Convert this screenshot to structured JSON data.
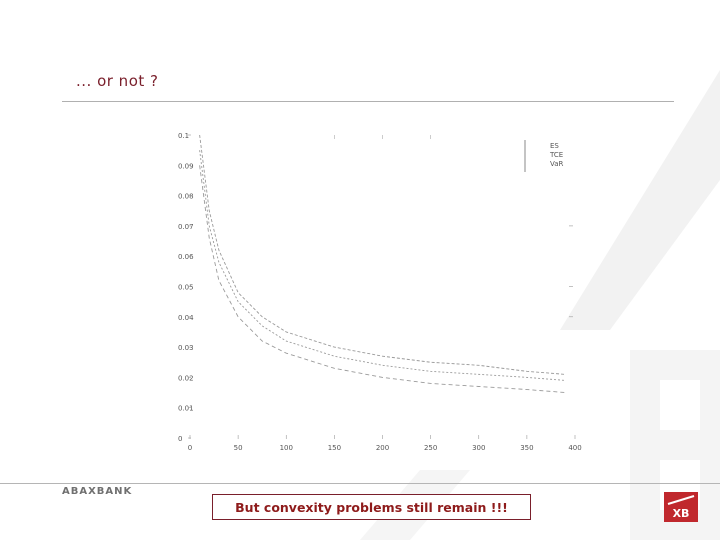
{
  "slide": {
    "title": "... or not ?",
    "brand": "ABAXBANK",
    "callout": "But convexity problems still remain !!!",
    "logo_text": "XB"
  },
  "colors": {
    "title": "#7a1f2b",
    "callout_text": "#8e1b1b",
    "logo_red": "#c0282d",
    "watermark": "#f2f2f2",
    "line": "#9a9a9a"
  },
  "chart_data": {
    "type": "line",
    "title": "",
    "xlabel": "",
    "ylabel": "",
    "xlim": [
      0,
      400
    ],
    "ylim": [
      0,
      0.1
    ],
    "x_ticks": [
      0,
      50,
      100,
      150,
      200,
      250,
      300,
      350,
      400
    ],
    "x_tick_labels": [
      "0",
      "50",
      "100",
      "150",
      "200",
      "250",
      "300",
      "350",
      "400"
    ],
    "y_ticks": [
      0,
      0.01,
      0.02,
      0.03,
      0.04,
      0.05,
      0.06,
      0.07,
      0.08,
      0.09,
      0.1
    ],
    "y_tick_labels": [
      "0",
      "0.01",
      "0.02",
      "0.03",
      "0.04",
      "0.05",
      "0.06",
      "0.07",
      "0.08",
      "0.09",
      "0.1"
    ],
    "legend_position": "top-right",
    "grid": false,
    "series": [
      {
        "name": "ES",
        "x": [
          10,
          20,
          30,
          50,
          75,
          100,
          150,
          200,
          250,
          300,
          350,
          390
        ],
        "y": [
          0.1,
          0.075,
          0.062,
          0.048,
          0.04,
          0.035,
          0.03,
          0.027,
          0.025,
          0.024,
          0.022,
          0.021
        ]
      },
      {
        "name": "TCE",
        "x": [
          10,
          20,
          30,
          50,
          75,
          100,
          150,
          200,
          250,
          300,
          350,
          390
        ],
        "y": [
          0.095,
          0.07,
          0.058,
          0.045,
          0.037,
          0.032,
          0.027,
          0.024,
          0.022,
          0.021,
          0.02,
          0.019
        ]
      },
      {
        "name": "VaR",
        "x": [
          10,
          20,
          30,
          50,
          75,
          100,
          150,
          200,
          250,
          300,
          350,
          390
        ],
        "y": [
          0.09,
          0.066,
          0.052,
          0.04,
          0.032,
          0.028,
          0.023,
          0.02,
          0.018,
          0.017,
          0.016,
          0.015
        ]
      }
    ]
  }
}
